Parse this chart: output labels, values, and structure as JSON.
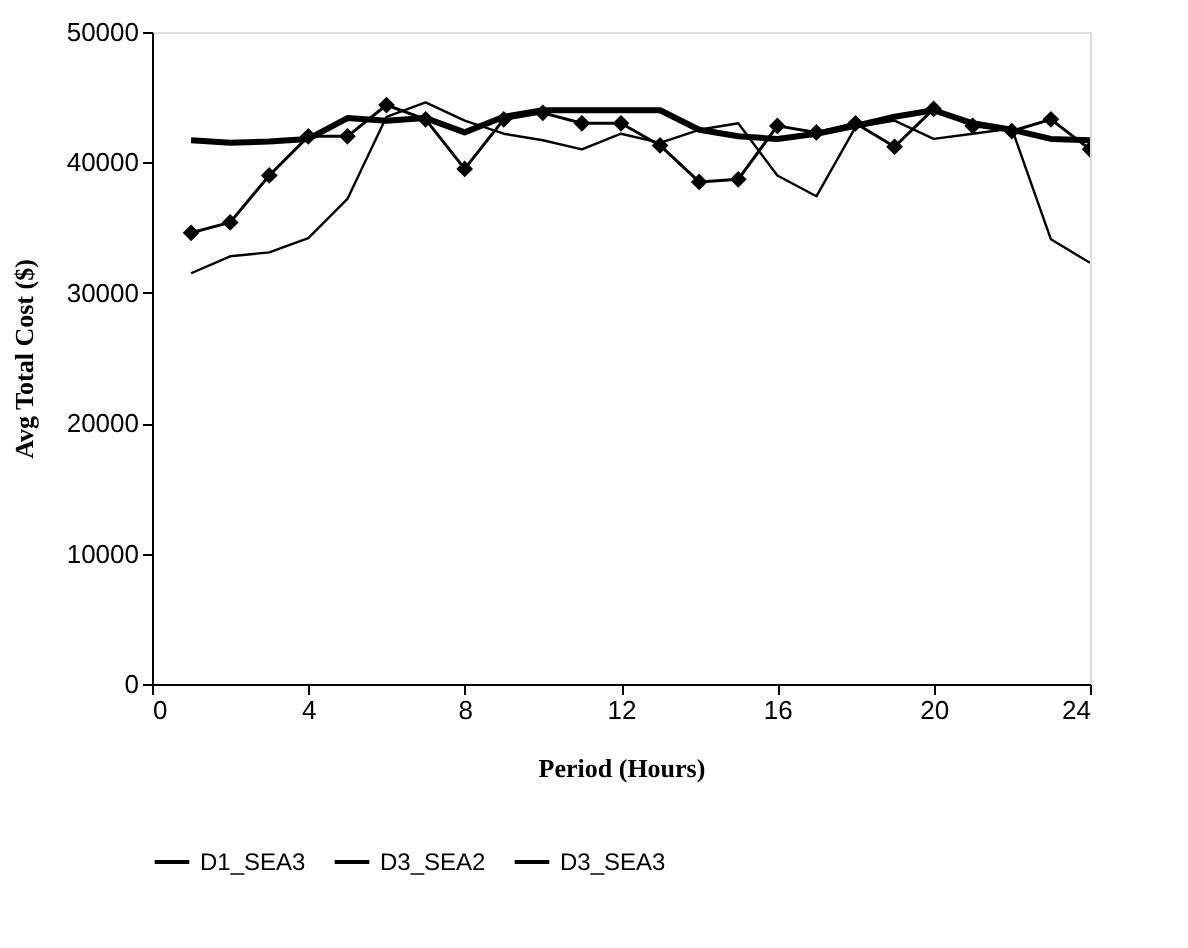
{
  "chart_data": {
    "type": "line",
    "xlabel": "Period (Hours)",
    "ylabel": "Avg Total Cost ($)",
    "x": [
      1,
      2,
      3,
      4,
      5,
      6,
      7,
      8,
      9,
      10,
      11,
      12,
      13,
      14,
      15,
      16,
      17,
      18,
      19,
      20,
      21,
      22,
      23,
      24
    ],
    "xlim": [
      0,
      24
    ],
    "xticks": [
      0,
      4,
      8,
      12,
      16,
      20,
      24
    ],
    "ylim": [
      0,
      50000
    ],
    "yticks": [
      0,
      10000,
      20000,
      30000,
      40000,
      50000
    ],
    "grid": false,
    "legend": "bottom",
    "series": [
      {
        "name": "D1_SEA3",
        "color": "#000000",
        "marker": "none",
        "values": [
          41700,
          41500,
          41600,
          41800,
          43400,
          43200,
          43400,
          42300,
          43500,
          44000,
          44000,
          44000,
          44000,
          42500,
          42000,
          41800,
          42200,
          42800,
          43500,
          44000,
          43000,
          42500,
          41800,
          41700
        ]
      },
      {
        "name": "D3_SEA2",
        "color": "#000000",
        "marker": "diamond",
        "values": [
          34600,
          35400,
          39000,
          42000,
          42000,
          44400,
          43300,
          39500,
          43300,
          43800,
          43000,
          43000,
          41300,
          38500,
          38700,
          42800,
          42300,
          43000,
          41200,
          44100,
          42800,
          42400,
          43300,
          41000
        ]
      },
      {
        "name": "D3_SEA3",
        "color": "#000000",
        "marker": "none",
        "values": [
          31500,
          32800,
          33100,
          34200,
          37200,
          43500,
          44600,
          43200,
          42200,
          41700,
          41000,
          42200,
          41500,
          42500,
          43000,
          39000,
          37400,
          42700,
          43200,
          41800,
          42200,
          42600,
          34100,
          32300
        ]
      }
    ]
  }
}
